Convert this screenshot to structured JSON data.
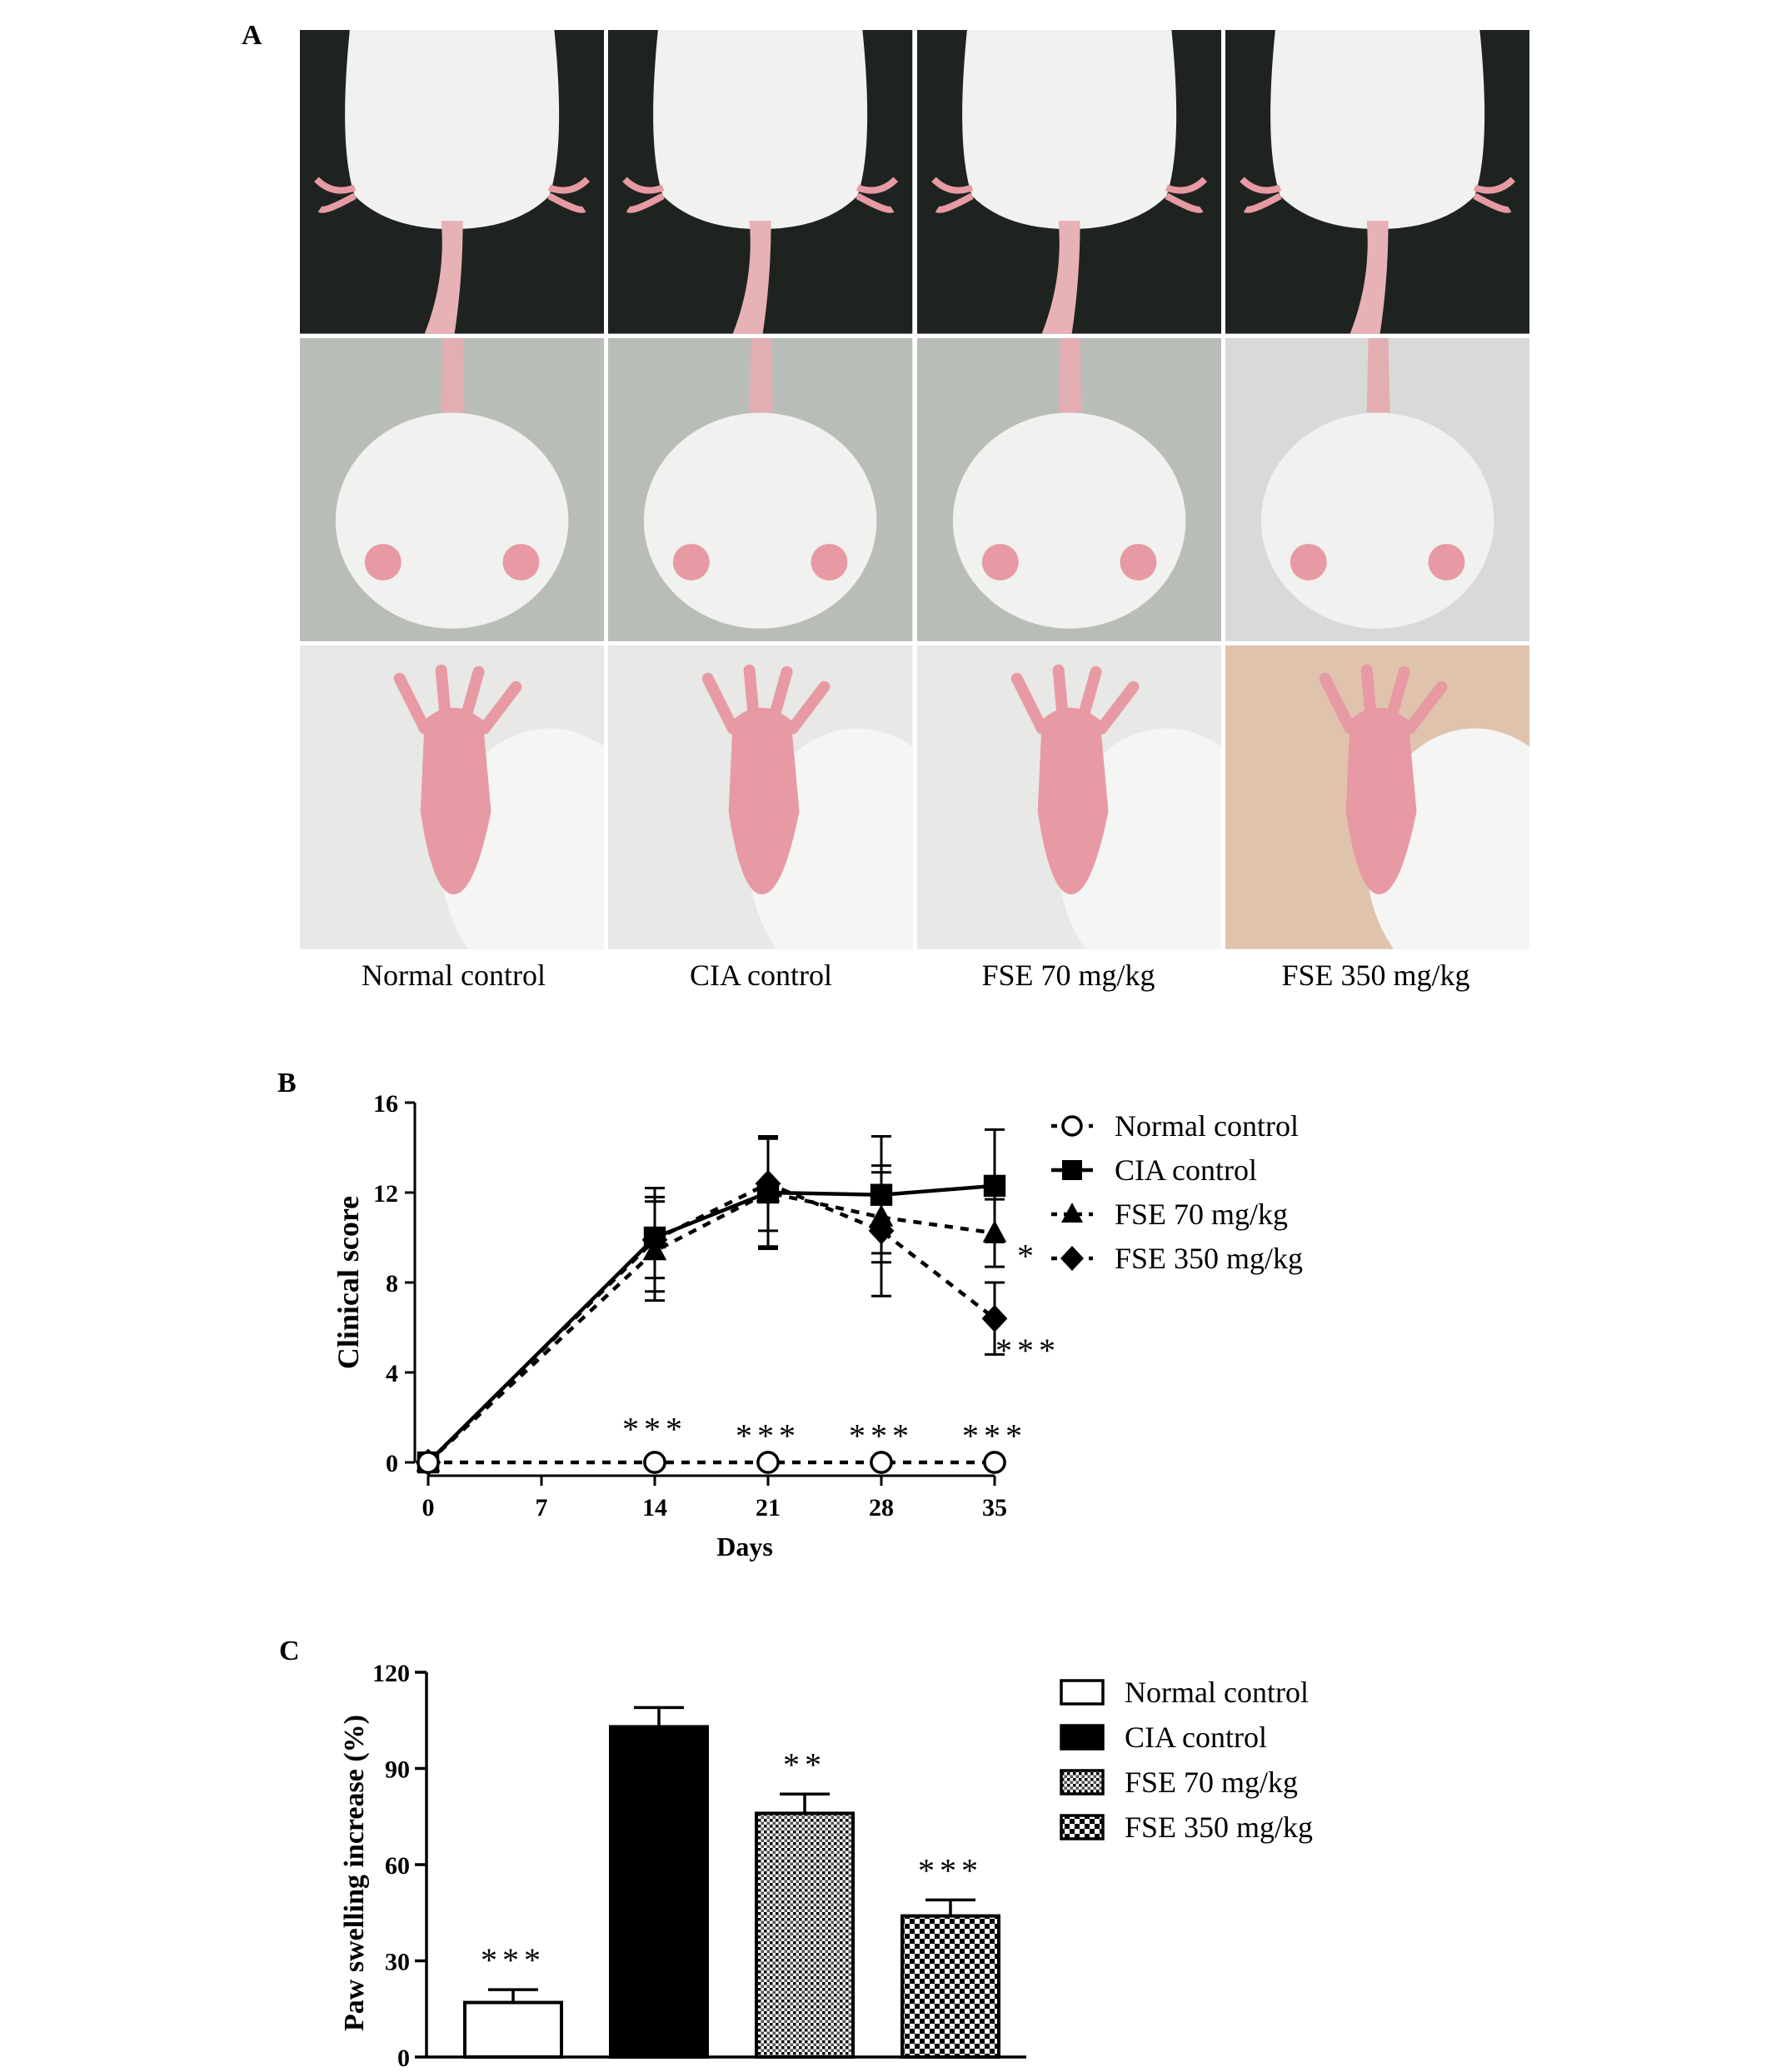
{
  "panels": {
    "a": "A",
    "b": "B",
    "c": "C"
  },
  "photo_columns": [
    "Normal control",
    "CIA control",
    "FSE 70 mg/kg",
    "FSE 350 mg/kg"
  ],
  "chart_data": [
    {
      "type": "line",
      "panel": "B",
      "xlabel": "Days",
      "ylabel": "Clinical score",
      "x": [
        0,
        14,
        21,
        28,
        35
      ],
      "xticks": [
        0,
        7,
        14,
        21,
        28,
        35
      ],
      "yticks": [
        0,
        4,
        8,
        12,
        16
      ],
      "xlim": [
        0,
        35
      ],
      "ylim": [
        0,
        16
      ],
      "legend_position": "right",
      "series": [
        {
          "name": "Normal control",
          "marker": "open-circle",
          "line": "dashed",
          "values": [
            0,
            0,
            0,
            0,
            0
          ],
          "err": [
            0,
            0,
            0,
            0,
            0
          ]
        },
        {
          "name": "CIA control",
          "marker": "square",
          "line": "solid",
          "values": [
            0,
            10.0,
            12.0,
            11.9,
            12.3
          ],
          "err": [
            0,
            1.8,
            2.5,
            2.6,
            2.5
          ]
        },
        {
          "name": "FSE 70 mg/kg",
          "marker": "triangle",
          "line": "dashed",
          "values": [
            0,
            9.4,
            12.0,
            10.9,
            10.2
          ],
          "err": [
            0,
            2.2,
            2.4,
            2.0,
            1.5
          ]
        },
        {
          "name": "FSE 350 mg/kg",
          "marker": "diamond",
          "line": "dashed",
          "values": [
            0,
            9.9,
            12.4,
            10.3,
            6.4
          ],
          "err": [
            0,
            2.3,
            2.1,
            2.9,
            1.6
          ]
        }
      ],
      "annotations": [
        {
          "text": "***",
          "x": 14,
          "y": 1.5
        },
        {
          "text": "***",
          "x": 21,
          "y": 1.2
        },
        {
          "text": "***",
          "x": 28,
          "y": 1.2
        },
        {
          "text": "***",
          "x": 35,
          "y": 1.2
        },
        {
          "text": "*",
          "x": 35,
          "y": 9.2
        },
        {
          "text": "***",
          "x": 35,
          "y": 5.0
        }
      ]
    },
    {
      "type": "bar",
      "panel": "C",
      "ylabel": "Paw swelling increase (%)",
      "categories": [
        "Normal control",
        "CIA control",
        "FSE 70 mg/kg",
        "FSE 350 mg/kg"
      ],
      "values": [
        17,
        103,
        76,
        44
      ],
      "err": [
        4,
        6,
        6,
        5
      ],
      "yticks": [
        0,
        30,
        60,
        90,
        120
      ],
      "ylim": [
        0,
        120
      ],
      "fills": [
        "white",
        "black",
        "dense-hatch",
        "checker"
      ],
      "significance": [
        "***",
        "",
        "**",
        "***"
      ],
      "legend_position": "right"
    }
  ],
  "colors": {
    "ink": "#000000",
    "background": "#ffffff",
    "photo_dark": "#1e2320",
    "fur": "#f1f1ef",
    "paw": "#e79aa3"
  }
}
